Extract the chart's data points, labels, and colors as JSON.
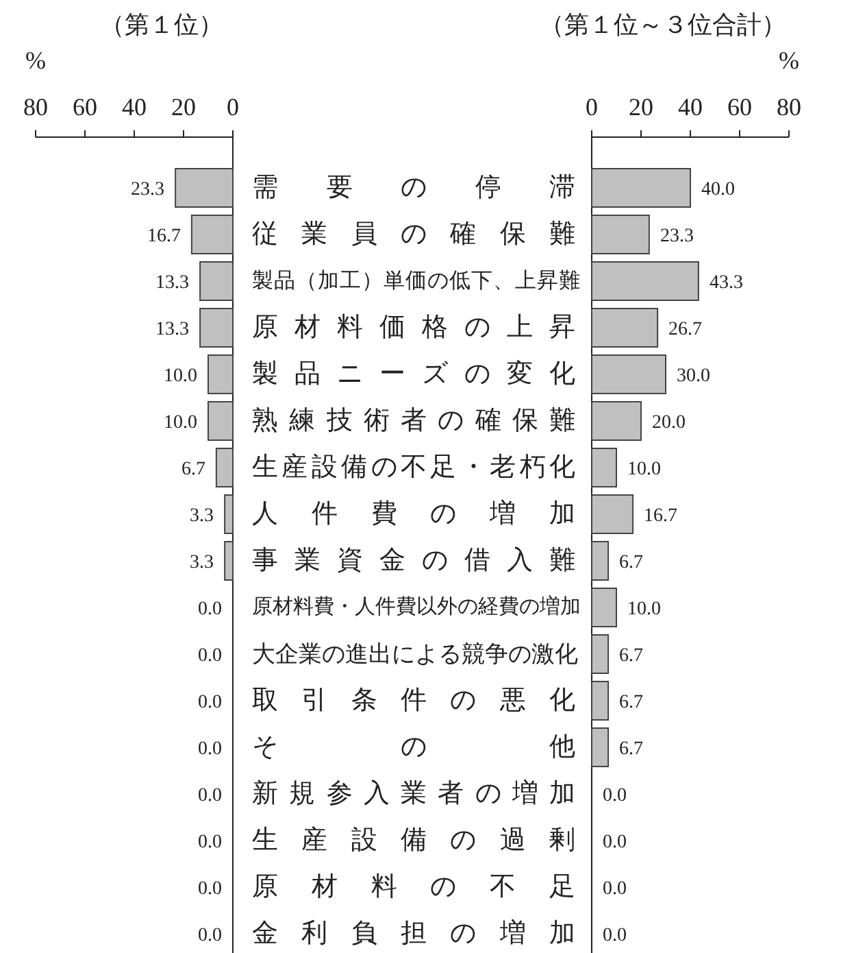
{
  "chart_data": [
    {
      "type": "bar",
      "orientation": "horizontal",
      "title": "（第１位）",
      "xlabel": "%",
      "categories": [
        "需要の停滞",
        "従業員の確保難",
        "製品（加工）単価の低下、上昇難",
        "原材料価格の上昇",
        "製品ニーズの変化",
        "熟練技術者の確保難",
        "生産設備の不足・老朽化",
        "人件費の増加",
        "事業資金の借入難",
        "原材料費・人件費以外の経費の増加",
        "大企業の進出による競争の激化",
        "取引条件の悪化",
        "その他",
        "新規参入業者の増加",
        "生産設備の過剰",
        "原材料の不足",
        "金利負担の増加"
      ],
      "values": [
        23.3,
        16.7,
        13.3,
        13.3,
        10.0,
        10.0,
        6.7,
        3.3,
        3.3,
        0.0,
        0.0,
        0.0,
        0.0,
        0.0,
        0.0,
        0.0,
        0.0
      ],
      "value_labels": [
        "23.3",
        "16.7",
        "13.3",
        "13.3",
        "10.0",
        "10.0",
        "6.7",
        "3.3",
        "3.3",
        "0.0",
        "0.0",
        "0.0",
        "0.0",
        "0.0",
        "0.0",
        "0.0",
        "0.0"
      ],
      "color": "#c0c0c0",
      "xlim": [
        80,
        0
      ],
      "xticks": [
        80,
        60,
        40,
        20,
        0
      ]
    },
    {
      "type": "bar",
      "orientation": "horizontal",
      "title": "（第１位～３位合計）",
      "xlabel": "%",
      "categories": [
        null,
        null,
        null,
        null,
        null,
        null,
        null,
        null,
        null,
        null,
        null,
        null,
        null,
        null,
        null,
        null,
        null
      ],
      "values": [
        40.0,
        23.3,
        43.3,
        26.7,
        30.0,
        20.0,
        10.0,
        16.7,
        6.7,
        10.0,
        6.7,
        6.7,
        6.7,
        0.0,
        0.0,
        0.0,
        0.0
      ],
      "value_labels": [
        "40.0",
        "23.3",
        "43.3",
        "26.7",
        "30.0",
        "20.0",
        "10.0",
        "16.7",
        "6.7",
        "10.0",
        "6.7",
        "6.7",
        "6.7",
        "0.0",
        "0.0",
        "0.0",
        "0.0"
      ],
      "color": "#c0c0c0",
      "xlim": [
        0,
        80
      ],
      "xticks": [
        0,
        20,
        40,
        60,
        80
      ]
    }
  ]
}
